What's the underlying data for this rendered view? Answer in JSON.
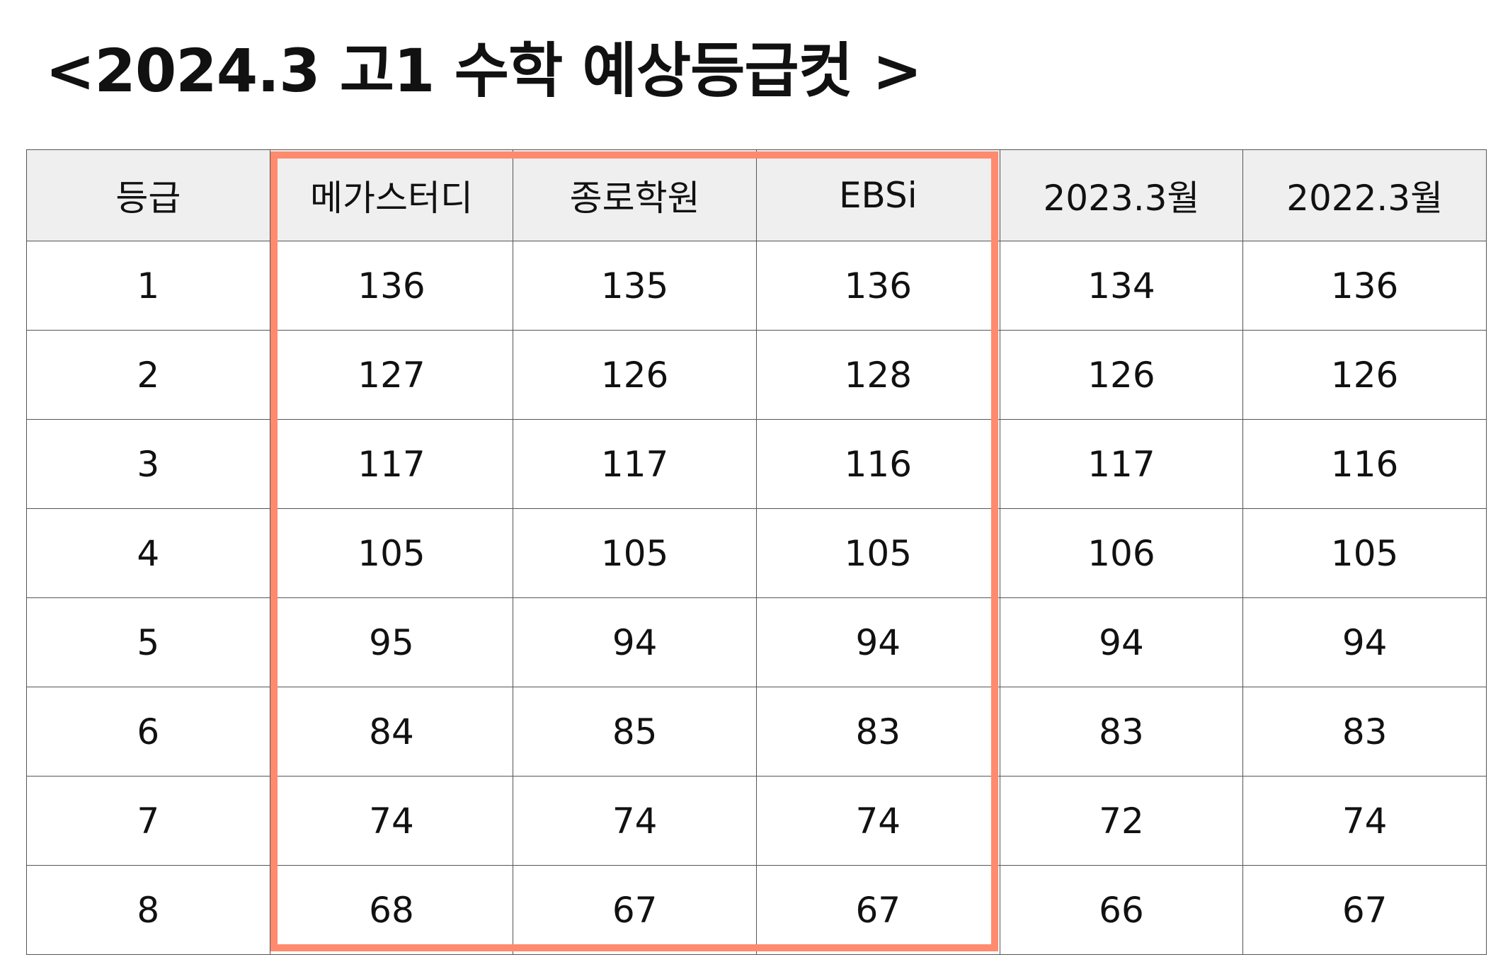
{
  "title": "<2024.3 고1 수학 예상등급컷 >",
  "highlight_color": "#ff8a6e",
  "table": {
    "headers": [
      "등급",
      "메가스터디",
      "종로학원",
      "EBSi",
      "2023.3월",
      "2022.3월"
    ],
    "rows": [
      [
        "1",
        "136",
        "135",
        "136",
        "134",
        "136"
      ],
      [
        "2",
        "127",
        "126",
        "128",
        "126",
        "126"
      ],
      [
        "3",
        "117",
        "117",
        "116",
        "117",
        "116"
      ],
      [
        "4",
        "105",
        "105",
        "105",
        "106",
        "105"
      ],
      [
        "5",
        "95",
        "94",
        "94",
        "94",
        "94"
      ],
      [
        "6",
        "84",
        "85",
        "83",
        "83",
        "83"
      ],
      [
        "7",
        "74",
        "74",
        "74",
        "72",
        "74"
      ],
      [
        "8",
        "68",
        "67",
        "67",
        "66",
        "67"
      ]
    ]
  }
}
